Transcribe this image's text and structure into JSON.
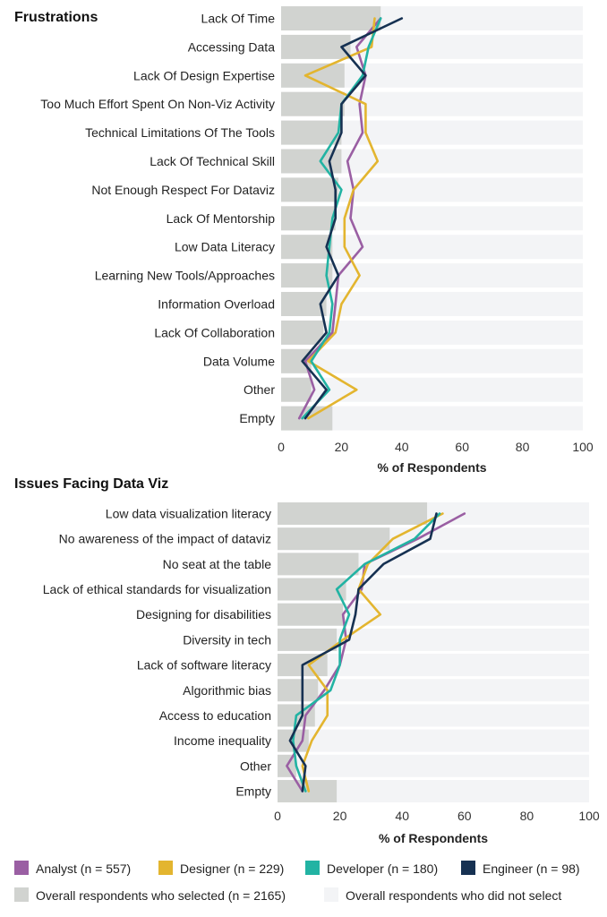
{
  "legend": {
    "series": [
      {
        "label": "Analyst (n = 557)",
        "color": "#9a5fa3"
      },
      {
        "label": "Designer (n = 229)",
        "color": "#e3b52f"
      },
      {
        "label": "Developer (n = 180)",
        "color": "#22b3a3"
      },
      {
        "label": "Engineer (n = 98)",
        "color": "#163152"
      }
    ],
    "selected_label": "Overall respondents who selected (n = 2165)",
    "selected_color": "#d1d3d0",
    "unselected_label": "Overall respondents who did not select",
    "unselected_color": "#f3f4f6"
  },
  "chart_data": [
    {
      "type": "bar",
      "title": "Frustrations",
      "xlabel": "% of Respondents",
      "xlim": [
        0,
        100
      ],
      "xticks": [
        0,
        20,
        40,
        60,
        80,
        100
      ],
      "categories": [
        "Lack Of Time",
        "Accessing Data",
        "Lack Of Design Expertise",
        "Too Much Effort Spent On Non-Viz Activity",
        "Technical Limitations Of The Tools",
        "Lack Of Technical Skill",
        "Not Enough Respect For Dataviz",
        "Lack Of Mentorship",
        "Low Data Literacy",
        "Learning New Tools/Approaches",
        "Information Overload",
        "Lack Of Collaboration",
        "Data Volume",
        "Other",
        "Empty"
      ],
      "overall": [
        33,
        23,
        21,
        21,
        20,
        20,
        19,
        18,
        17,
        17,
        15,
        14,
        10,
        10,
        17
      ],
      "series": [
        {
          "name": "Analyst",
          "values": [
            33,
            25,
            28,
            26,
            27,
            22,
            24,
            23,
            27,
            19,
            18,
            17,
            8,
            11,
            6
          ]
        },
        {
          "name": "Designer",
          "values": [
            31,
            30,
            8,
            28,
            28,
            32,
            24,
            21,
            21,
            26,
            20,
            18,
            9,
            25,
            9
          ]
        },
        {
          "name": "Developer",
          "values": [
            33,
            29,
            27,
            20,
            19,
            13,
            20,
            17,
            16,
            15,
            17,
            16,
            10,
            16,
            7
          ]
        },
        {
          "name": "Engineer",
          "values": [
            40,
            20,
            28,
            20,
            20,
            16,
            18,
            18,
            15,
            19,
            13,
            15,
            7,
            15,
            8
          ]
        }
      ]
    },
    {
      "type": "bar",
      "title": "Issues Facing Data Viz",
      "xlabel": "% of Respondents",
      "xlim": [
        0,
        100
      ],
      "xticks": [
        0,
        20,
        40,
        60,
        80,
        100
      ],
      "categories": [
        "Low data visualization literacy",
        "No awareness of the impact of dataviz",
        "No seat at the table",
        "Lack of ethical standards for visualization",
        "Designing for disabilities",
        "Diversity in tech",
        "Lack of software literacy",
        "Algorithmic bias",
        "Access to education",
        "Income inequality",
        "Other",
        "Empty"
      ],
      "overall": [
        48,
        36,
        26,
        22,
        21,
        19,
        16,
        13,
        12,
        10,
        6,
        19
      ],
      "series": [
        {
          "name": "Analyst",
          "values": [
            60,
            45,
            28,
            27,
            21,
            22,
            20,
            15,
            9,
            8,
            3,
            8
          ]
        },
        {
          "name": "Designer",
          "values": [
            53,
            37,
            29,
            26,
            33,
            21,
            10,
            16,
            16,
            11,
            8,
            10
          ]
        },
        {
          "name": "Developer",
          "values": [
            52,
            44,
            28,
            19,
            23,
            20,
            20,
            17,
            6,
            5,
            6,
            9
          ]
        },
        {
          "name": "Engineer",
          "values": [
            51,
            49,
            34,
            26,
            25,
            23,
            8,
            8,
            8,
            4,
            9,
            8
          ]
        }
      ]
    }
  ]
}
